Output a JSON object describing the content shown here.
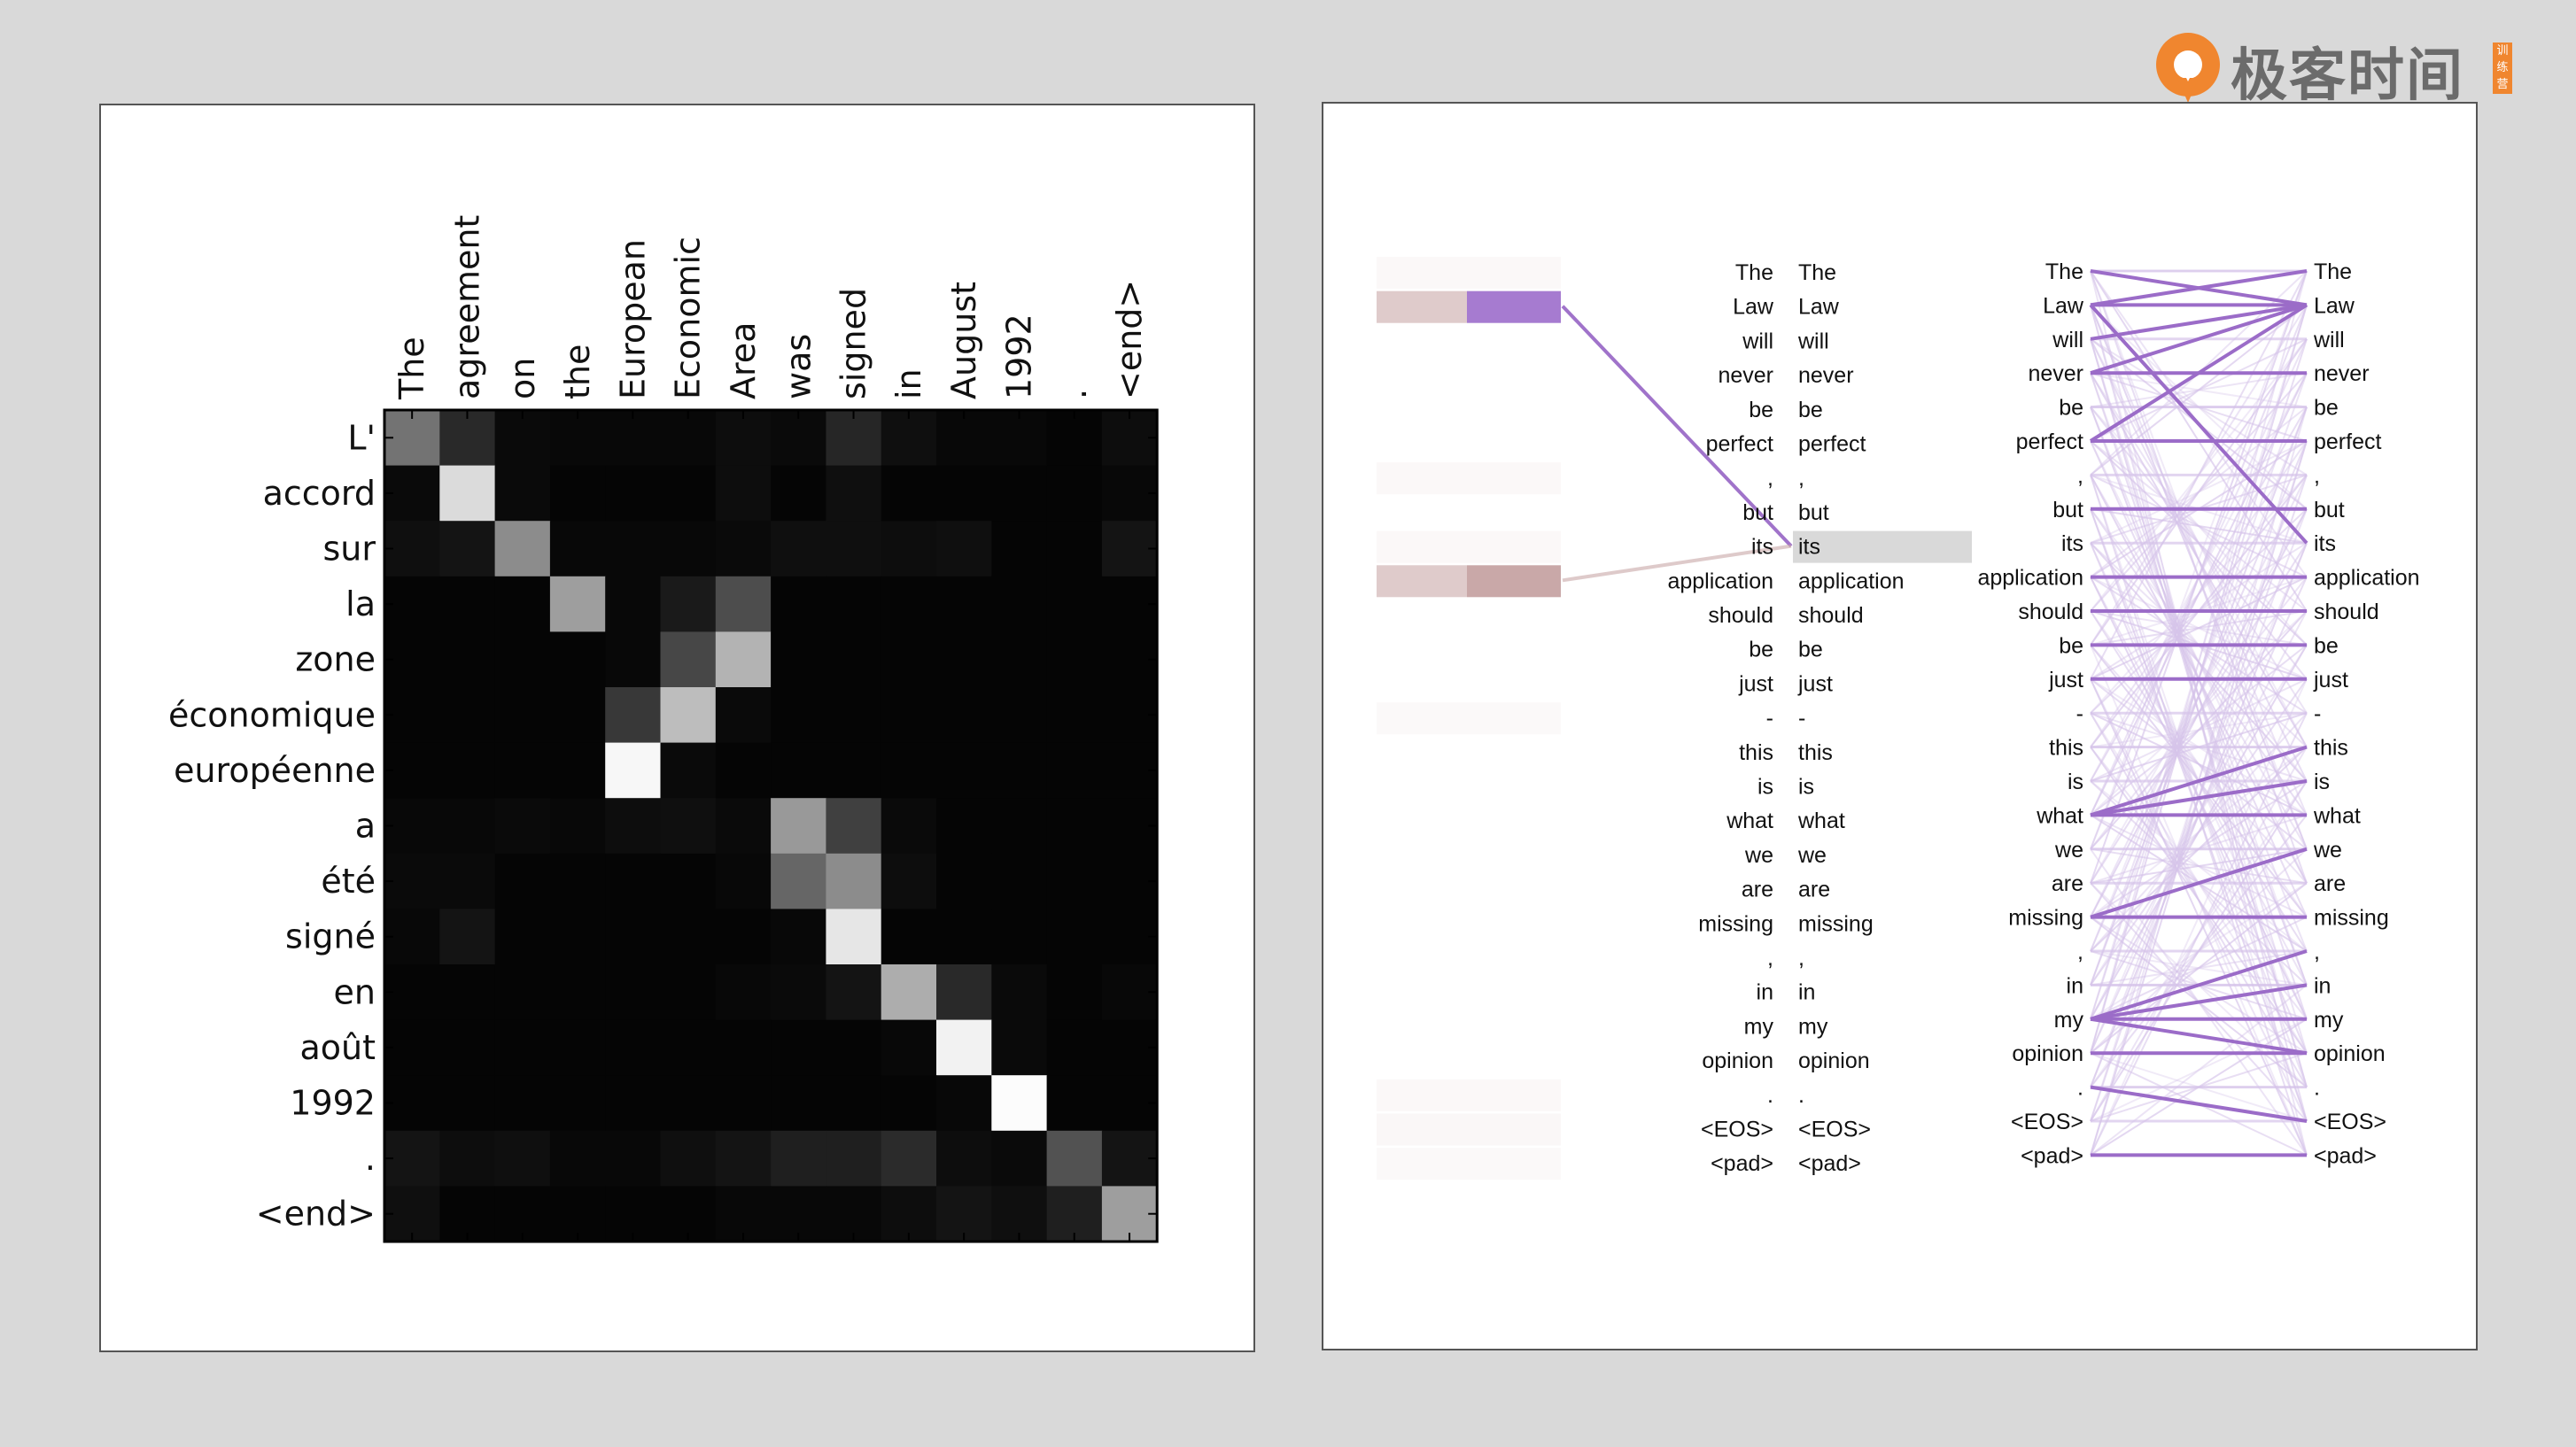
{
  "brand": {
    "name": "极客时间",
    "tag": "训练营",
    "accent": "#f0862f"
  },
  "attention_matrix": {
    "columns": [
      "The",
      "agreement",
      "on",
      "the",
      "European",
      "Economic",
      "Area",
      "was",
      "signed",
      "in",
      "August",
      "1992",
      ".",
      "<end>"
    ],
    "rows": [
      "L'",
      "accord",
      "sur",
      "la",
      "zone",
      "économique",
      "européenne",
      "a",
      "été",
      "signé",
      "en",
      "août",
      "1992",
      ".",
      "<end>"
    ],
    "weights": [
      [
        0.45,
        0.16,
        0.04,
        0.03,
        0.03,
        0.03,
        0.05,
        0.04,
        0.15,
        0.06,
        0.03,
        0.03,
        0.02,
        0.05
      ],
      [
        0.04,
        0.86,
        0.04,
        0.02,
        0.02,
        0.02,
        0.05,
        0.02,
        0.06,
        0.02,
        0.02,
        0.02,
        0.02,
        0.03
      ],
      [
        0.06,
        0.08,
        0.55,
        0.03,
        0.03,
        0.03,
        0.04,
        0.06,
        0.06,
        0.05,
        0.06,
        0.02,
        0.02,
        0.08
      ],
      [
        0.02,
        0.02,
        0.02,
        0.62,
        0.03,
        0.1,
        0.3,
        0.02,
        0.02,
        0.02,
        0.02,
        0.02,
        0.02,
        0.02
      ],
      [
        0.02,
        0.02,
        0.02,
        0.02,
        0.03,
        0.28,
        0.7,
        0.02,
        0.02,
        0.02,
        0.02,
        0.02,
        0.02,
        0.02
      ],
      [
        0.02,
        0.02,
        0.02,
        0.02,
        0.22,
        0.74,
        0.04,
        0.02,
        0.02,
        0.02,
        0.02,
        0.02,
        0.02,
        0.02
      ],
      [
        0.02,
        0.02,
        0.02,
        0.02,
        0.97,
        0.04,
        0.02,
        0.02,
        0.02,
        0.02,
        0.02,
        0.02,
        0.02,
        0.02
      ],
      [
        0.03,
        0.03,
        0.04,
        0.03,
        0.05,
        0.06,
        0.04,
        0.6,
        0.25,
        0.04,
        0.02,
        0.02,
        0.02,
        0.02
      ],
      [
        0.04,
        0.04,
        0.02,
        0.02,
        0.02,
        0.02,
        0.03,
        0.4,
        0.55,
        0.05,
        0.02,
        0.02,
        0.02,
        0.02
      ],
      [
        0.03,
        0.08,
        0.02,
        0.02,
        0.02,
        0.02,
        0.02,
        0.03,
        0.9,
        0.02,
        0.02,
        0.02,
        0.02,
        0.02
      ],
      [
        0.02,
        0.02,
        0.02,
        0.02,
        0.02,
        0.02,
        0.03,
        0.04,
        0.08,
        0.68,
        0.16,
        0.04,
        0.02,
        0.03
      ],
      [
        0.02,
        0.02,
        0.02,
        0.02,
        0.02,
        0.02,
        0.02,
        0.02,
        0.02,
        0.03,
        0.95,
        0.04,
        0.02,
        0.02
      ],
      [
        0.02,
        0.02,
        0.02,
        0.02,
        0.02,
        0.02,
        0.02,
        0.02,
        0.02,
        0.02,
        0.03,
        0.99,
        0.02,
        0.02
      ],
      [
        0.08,
        0.05,
        0.06,
        0.03,
        0.03,
        0.06,
        0.08,
        0.12,
        0.12,
        0.17,
        0.05,
        0.04,
        0.32,
        0.08
      ],
      [
        0.06,
        0.02,
        0.02,
        0.02,
        0.02,
        0.02,
        0.03,
        0.03,
        0.03,
        0.05,
        0.08,
        0.06,
        0.12,
        0.62
      ]
    ]
  },
  "token_attention": {
    "tokens": [
      "The",
      "Law",
      "will",
      "never",
      "be",
      "perfect",
      ",",
      "but",
      "its",
      "application",
      "should",
      "be",
      "just",
      "-",
      "this",
      "is",
      "what",
      "we",
      "are",
      "missing",
      ",",
      "in",
      "my",
      "opinion",
      ".",
      "<EOS>",
      "<pad>"
    ],
    "query_token_index": 8,
    "query_links": [
      {
        "from": 1,
        "strength": 0.95
      },
      {
        "from": 9,
        "strength": 0.6
      }
    ],
    "left_bars": [
      0.03,
      0.55,
      0,
      0,
      0,
      0,
      0.03,
      0,
      0.03,
      0.55,
      0,
      0,
      0,
      0.02,
      0,
      0,
      0,
      0,
      0,
      0,
      0,
      0,
      0,
      0,
      0.03,
      0.04,
      0.02
    ],
    "strong_links": [
      [
        1,
        0
      ],
      [
        1,
        1
      ],
      [
        1,
        8
      ],
      [
        0,
        1
      ],
      [
        2,
        1
      ],
      [
        3,
        3
      ],
      [
        5,
        5
      ],
      [
        7,
        7
      ],
      [
        9,
        9
      ],
      [
        10,
        10
      ],
      [
        11,
        11
      ],
      [
        12,
        12
      ],
      [
        16,
        16
      ],
      [
        16,
        14
      ],
      [
        16,
        15
      ],
      [
        19,
        19
      ],
      [
        19,
        17
      ],
      [
        22,
        21
      ],
      [
        22,
        22
      ],
      [
        22,
        23
      ],
      [
        22,
        20
      ],
      [
        23,
        23
      ],
      [
        24,
        25
      ],
      [
        26,
        26
      ],
      [
        3,
        1
      ],
      [
        5,
        1
      ]
    ],
    "colors": {
      "strong": "#9b6cc8",
      "faint": "#d6c4ea",
      "query_link": "#c9a8a8",
      "bar_brown": "#c9a8a8",
      "bar_purple": "#a67bd0",
      "highlight": "#d9d9d9"
    }
  }
}
